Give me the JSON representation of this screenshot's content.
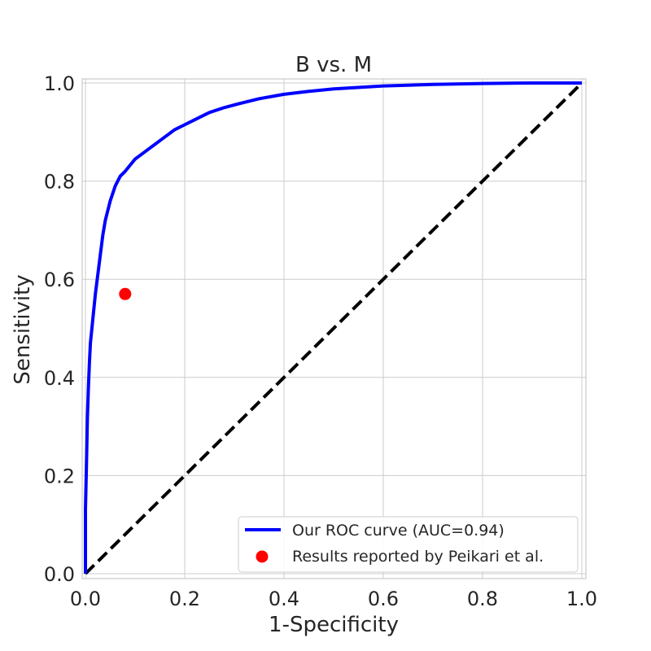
{
  "chart_data": {
    "type": "line",
    "title": "B vs. M",
    "xlabel": "1-Specificity",
    "ylabel": "Sensitivity",
    "xlim": [
      0.0,
      1.0
    ],
    "ylim": [
      0.0,
      1.0
    ],
    "xticks": [
      "0.0",
      "0.2",
      "0.4",
      "0.6",
      "0.8",
      "1.0"
    ],
    "yticks": [
      "0.0",
      "0.2",
      "0.4",
      "0.6",
      "0.8",
      "1.0"
    ],
    "grid": true,
    "legend_position": "bottom-right",
    "series": [
      {
        "name": "Our ROC curve (AUC=0.94)",
        "kind": "line",
        "color": "#0000ff",
        "x": [
          0.0,
          0.0,
          0.002,
          0.004,
          0.006,
          0.008,
          0.01,
          0.012,
          0.015,
          0.02,
          0.025,
          0.03,
          0.035,
          0.04,
          0.05,
          0.06,
          0.07,
          0.08,
          0.1,
          0.12,
          0.14,
          0.16,
          0.18,
          0.2,
          0.22,
          0.25,
          0.28,
          0.31,
          0.35,
          0.4,
          0.45,
          0.5,
          0.6,
          0.7,
          0.8,
          0.9,
          1.0
        ],
        "y": [
          0.0,
          0.13,
          0.22,
          0.32,
          0.38,
          0.43,
          0.47,
          0.49,
          0.52,
          0.57,
          0.61,
          0.65,
          0.69,
          0.72,
          0.76,
          0.79,
          0.81,
          0.82,
          0.845,
          0.86,
          0.875,
          0.89,
          0.905,
          0.915,
          0.925,
          0.94,
          0.95,
          0.958,
          0.968,
          0.977,
          0.983,
          0.988,
          0.994,
          0.997,
          0.999,
          1.0,
          1.0
        ]
      },
      {
        "name": "",
        "kind": "dashed-line",
        "color": "#000000",
        "x": [
          0.0,
          1.0
        ],
        "y": [
          0.0,
          1.0
        ]
      },
      {
        "name": "Results reported by Peikari et al.",
        "kind": "scatter",
        "color": "#ff0000",
        "x": [
          0.08
        ],
        "y": [
          0.57
        ]
      }
    ]
  }
}
